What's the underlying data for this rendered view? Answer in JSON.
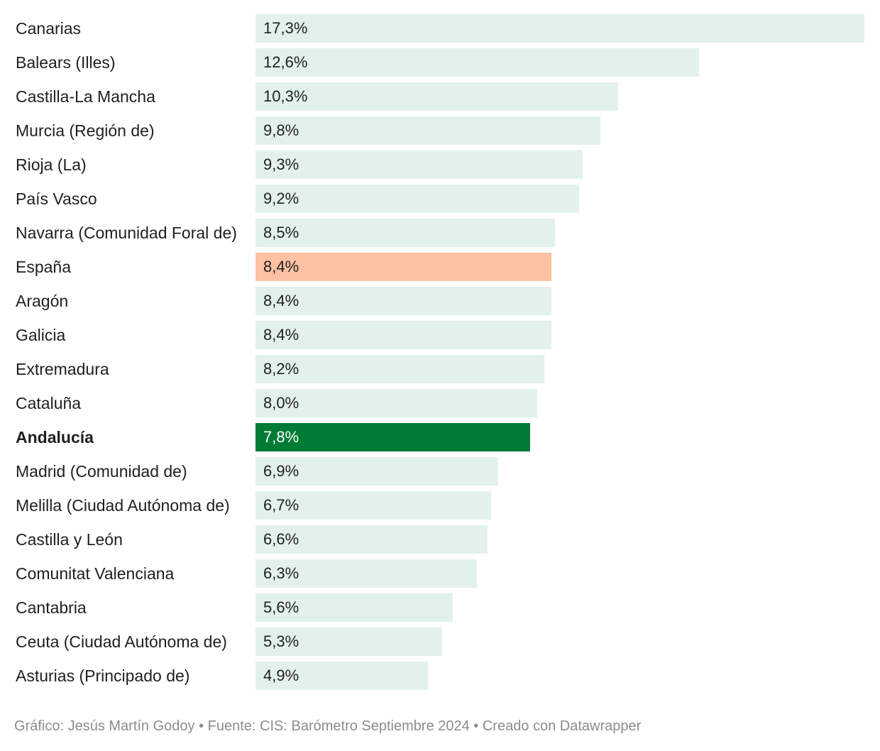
{
  "chart_data": {
    "type": "bar",
    "orientation": "horizontal",
    "categories": [
      "Canarias",
      "Balears (Illes)",
      "Castilla-La Mancha",
      "Murcia (Región de)",
      "Rioja (La)",
      "País Vasco",
      "Navarra (Comunidad Foral de)",
      "España",
      "Aragón",
      "Galicia",
      "Extremadura",
      "Cataluña",
      "Andalucía",
      "Madrid (Comunidad de)",
      "Melilla (Ciudad Autónoma de)",
      "Castilla y León",
      "Comunitat Valenciana",
      "Cantabria",
      "Ceuta (Ciudad Autónoma de)",
      "Asturias (Principado de)"
    ],
    "values": [
      17.3,
      12.6,
      10.3,
      9.8,
      9.3,
      9.2,
      8.5,
      8.4,
      8.4,
      8.4,
      8.2,
      8.0,
      7.8,
      6.9,
      6.7,
      6.6,
      6.3,
      5.6,
      5.3,
      4.9
    ],
    "value_labels": [
      "17,3%",
      "12,6%",
      "10,3%",
      "9,8%",
      "9,3%",
      "9,2%",
      "8,5%",
      "8,4%",
      "8,4%",
      "8,4%",
      "8,2%",
      "8,0%",
      "7,8%",
      "6,9%",
      "6,7%",
      "6,6%",
      "6,3%",
      "5,6%",
      "5,3%",
      "4,9%"
    ],
    "xlim": [
      0,
      17.3
    ],
    "grid": false,
    "legend": "none",
    "highlights": {
      "España": "peach",
      "Andalucía": "green"
    },
    "bold_labels": [
      "Andalucía"
    ]
  },
  "colors": {
    "default_bar": "#e2f2eb",
    "peach": "#fdc1a3",
    "green": "#007b36",
    "text_dark": "#1f1f1f",
    "text_light": "#ffffff",
    "footer_text": "#8c8c8c"
  },
  "footer": {
    "text": "Gráfico: Jesús Martín Godoy • Fuente: CIS: Barómetro Septiembre 2024 • Creado con Datawrapper"
  }
}
